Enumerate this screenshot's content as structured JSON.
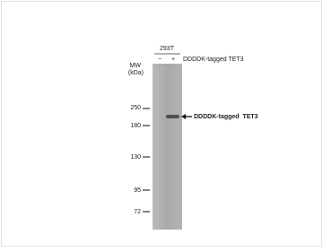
{
  "header": {
    "cell_line": "293T",
    "lanes": [
      "−",
      "+"
    ],
    "condition": "DDDDK-tagged TET3"
  },
  "mw": {
    "title": "MW",
    "unit": "(kDa)",
    "markers": [
      "250",
      "180",
      "130",
      "95",
      "72"
    ]
  },
  "annotation": {
    "band_label": "DDDDK-tagged  TET3"
  }
}
